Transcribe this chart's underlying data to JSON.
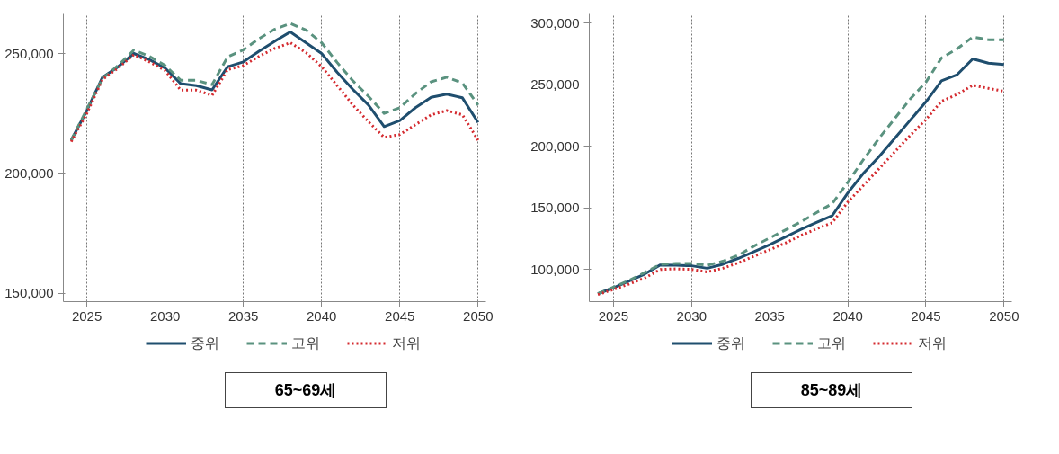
{
  "chart_data": [
    {
      "type": "line",
      "title": "65~69세",
      "x": [
        2024,
        2025,
        2026,
        2027,
        2028,
        2029,
        2030,
        2031,
        2032,
        2033,
        2034,
        2035,
        2036,
        2037,
        2038,
        2039,
        2040,
        2041,
        2042,
        2043,
        2044,
        2045,
        2046,
        2047,
        2048,
        2049,
        2050
      ],
      "xlim": [
        2023.5,
        2050.5
      ],
      "xticks": [
        2025,
        2030,
        2035,
        2040,
        2045,
        2050
      ],
      "ylim": [
        146500,
        266500
      ],
      "yticks": [
        {
          "value": 150000,
          "label": "150,000"
        },
        {
          "value": 200000,
          "label": "200,000"
        },
        {
          "value": 250000,
          "label": "250,000"
        }
      ],
      "grid": "x",
      "legend": "bottom",
      "series": [
        {
          "name": "중위",
          "color": "#1f4e6e",
          "line_style": "solid",
          "values": [
            213800,
            226200,
            240100,
            244500,
            250000,
            247400,
            243900,
            237400,
            236600,
            234800,
            244500,
            246500,
            250900,
            255100,
            259000,
            254500,
            250000,
            242100,
            235000,
            228500,
            219500,
            222000,
            227400,
            231700,
            233000,
            231500,
            221200
          ]
        },
        {
          "name": "고위",
          "color": "#5a927f",
          "line_style": "dashed",
          "values": [
            213800,
            226800,
            239600,
            245000,
            251400,
            248800,
            245000,
            238800,
            238800,
            237000,
            248600,
            251500,
            256200,
            260100,
            262500,
            259800,
            254500,
            246200,
            238600,
            232100,
            225000,
            227400,
            233300,
            238200,
            240100,
            237700,
            228500
          ]
        },
        {
          "name": "저위",
          "color": "#d42a2f",
          "line_style": "dotted",
          "values": [
            213200,
            225000,
            239200,
            243900,
            249500,
            246500,
            242900,
            234700,
            234700,
            232500,
            243300,
            245000,
            248800,
            252100,
            254500,
            250400,
            244500,
            236600,
            228500,
            221500,
            215000,
            216200,
            220300,
            224400,
            226200,
            224400,
            213800
          ]
        }
      ]
    },
    {
      "type": "line",
      "title": "85~89세",
      "x": [
        2024,
        2025,
        2026,
        2027,
        2028,
        2029,
        2030,
        2031,
        2032,
        2033,
        2034,
        2035,
        2036,
        2037,
        2038,
        2039,
        2040,
        2041,
        2042,
        2043,
        2044,
        2045,
        2046,
        2047,
        2048,
        2049,
        2050
      ],
      "xlim": [
        2023.45,
        2050.5
      ],
      "xticks": [
        2025,
        2030,
        2035,
        2040,
        2045,
        2050
      ],
      "ylim": [
        73900,
        307400
      ],
      "yticks": [
        {
          "value": 100000,
          "label": "100,000"
        },
        {
          "value": 150000,
          "label": "150,000"
        },
        {
          "value": 200000,
          "label": "200,000"
        },
        {
          "value": 250000,
          "label": "250,000"
        },
        {
          "value": 300000,
          "label": "300,000"
        }
      ],
      "grid": "x",
      "legend": "bottom",
      "series": [
        {
          "name": "중위",
          "color": "#1f4e6e",
          "line_style": "solid",
          "values": [
            80300,
            85200,
            90600,
            96300,
            103700,
            103400,
            103000,
            101000,
            104200,
            109100,
            114500,
            120200,
            126400,
            132500,
            138200,
            143600,
            162100,
            178100,
            191600,
            206400,
            221200,
            236000,
            253200,
            258100,
            270900,
            267500,
            266300
          ]
        },
        {
          "name": "고위",
          "color": "#5a927f",
          "line_style": "dashed",
          "values": [
            80300,
            85700,
            91100,
            97500,
            104200,
            104900,
            104900,
            103400,
            106700,
            111600,
            119000,
            125600,
            132000,
            138700,
            146100,
            153400,
            170700,
            189200,
            206400,
            222400,
            238400,
            252000,
            271700,
            279100,
            288700,
            286500,
            286500
          ]
        },
        {
          "name": "저위",
          "color": "#d42a2f",
          "line_style": "dotted",
          "values": [
            79600,
            83800,
            88200,
            93100,
            100000,
            100500,
            100000,
            98000,
            101000,
            105400,
            110800,
            116000,
            121400,
            127600,
            133000,
            137900,
            154700,
            168200,
            181800,
            195300,
            208900,
            221700,
            236500,
            242100,
            249500,
            247000,
            244600
          ]
        }
      ]
    }
  ]
}
